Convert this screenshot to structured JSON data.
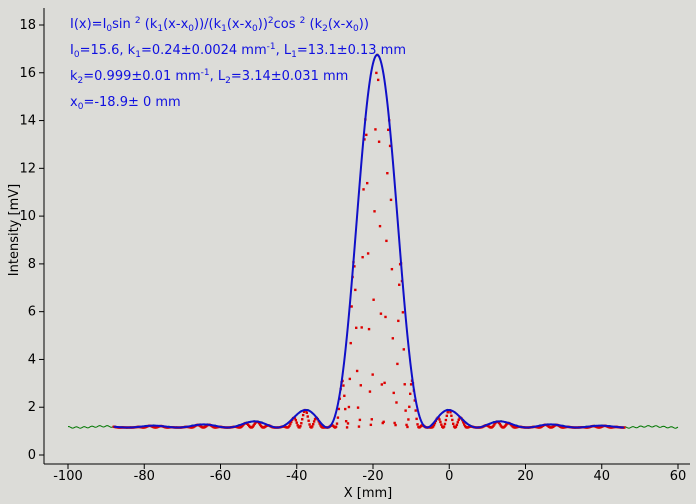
{
  "chart_data": {
    "type": "line",
    "xlabel": "X [mm]",
    "ylabel": "Intensity [mV]",
    "xlim": [
      -100,
      60
    ],
    "ylim": [
      0,
      18
    ],
    "xticks": [
      -100,
      -80,
      -60,
      -40,
      -20,
      0,
      20,
      40,
      60
    ],
    "yticks": [
      0,
      2,
      4,
      6,
      8,
      10,
      12,
      14,
      16,
      18
    ],
    "x_range_fit": [
      -88,
      46
    ],
    "x_range_data": [
      -100,
      60
    ],
    "baseline_offset": 1.15,
    "annotation": {
      "formula": "I(x)=I0sin 2 (k1(x-x0))/(k1(x-x0))2cos 2 (k2(x-x0))",
      "line1": "I0=15.6,  k1=0.24±0.0024 mm-1,   L1=13.1±0.13 mm",
      "line2": "k2=0.999±0.01 mm-1,   L2=3.14±0.031 mm",
      "line3": "x0=-18.9±   0 mm"
    },
    "fit_params": {
      "I0": 15.6,
      "k1": 0.24,
      "k2": 0.999,
      "x0": -18.9
    },
    "series": [
      {
        "role": "fit",
        "color": "#1010c8"
      },
      {
        "role": "measured",
        "color": "#dd0000"
      },
      {
        "role": "data",
        "color": "#007700"
      }
    ]
  }
}
